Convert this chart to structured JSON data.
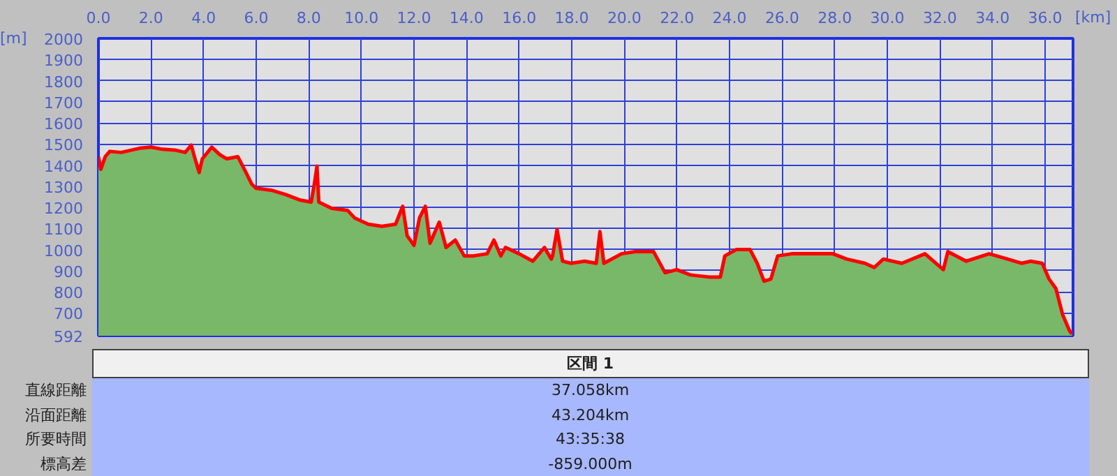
{
  "chart_data": {
    "type": "area",
    "xlabel": "[km]",
    "ylabel": "[m]",
    "xlim": [
      0,
      37.06
    ],
    "ylim": [
      592,
      2000
    ],
    "xticks": [
      {
        "value": 0,
        "label": "0.0"
      },
      {
        "value": 2,
        "label": "2.0"
      },
      {
        "value": 4,
        "label": "4.0"
      },
      {
        "value": 6,
        "label": "6.0"
      },
      {
        "value": 8,
        "label": "8.0"
      },
      {
        "value": 10,
        "label": "10.0"
      },
      {
        "value": 12,
        "label": "12.0"
      },
      {
        "value": 14,
        "label": "14.0"
      },
      {
        "value": 16,
        "label": "16.0"
      },
      {
        "value": 18,
        "label": "18.0"
      },
      {
        "value": 20,
        "label": "20.0"
      },
      {
        "value": 22,
        "label": "22.0"
      },
      {
        "value": 24,
        "label": "24.0"
      },
      {
        "value": 26,
        "label": "26.0"
      },
      {
        "value": 28,
        "label": "28.0"
      },
      {
        "value": 30,
        "label": "30.0"
      },
      {
        "value": 32,
        "label": "32.0"
      },
      {
        "value": 34,
        "label": "34.0"
      },
      {
        "value": 36,
        "label": "36.0"
      }
    ],
    "yticks": [
      592,
      700,
      800,
      900,
      1000,
      1100,
      1200,
      1300,
      1400,
      1500,
      1600,
      1700,
      1800,
      1900,
      2000
    ],
    "grid": true,
    "x": [
      0,
      0.09,
      0.26,
      0.43,
      0.87,
      1.57,
      2.0,
      2.43,
      2.96,
      3.3,
      3.53,
      3.65,
      3.83,
      3.95,
      4.31,
      4.61,
      4.87,
      5.3,
      5.57,
      5.83,
      6.0,
      6.61,
      7.13,
      7.65,
      8.09,
      8.21,
      8.31,
      8.38,
      8.87,
      9.48,
      9.74,
      10.26,
      10.78,
      11.3,
      11.57,
      11.74,
      12.0,
      12.21,
      12.43,
      12.61,
      12.96,
      13.22,
      13.57,
      13.91,
      14.26,
      14.78,
      15.04,
      15.3,
      15.48,
      16.0,
      16.52,
      16.96,
      17.22,
      17.27,
      17.44,
      17.65,
      17.97,
      18.49,
      18.93,
      19.07,
      19.22,
      19.89,
      20.41,
      21.11,
      21.55,
      21.99,
      22.51,
      23.21,
      23.65,
      23.82,
      24.26,
      24.78,
      25.05,
      25.31,
      25.57,
      25.83,
      26.36,
      26.88,
      27.41,
      27.93,
      28.45,
      29.15,
      29.5,
      29.85,
      30.55,
      31.43,
      32.13,
      32.3,
      33.0,
      33.87,
      34.57,
      35.1,
      35.45,
      35.89,
      36.15,
      36.41,
      36.67,
      36.93,
      37.02
    ],
    "series": [
      {
        "color": "#78b868",
        "values": [
          1440,
          1380,
          1440,
          1465,
          1460,
          1480,
          1485,
          1475,
          1470,
          1460,
          1495,
          1440,
          1365,
          1430,
          1485,
          1450,
          1430,
          1440,
          1375,
          1310,
          1290,
          1280,
          1260,
          1235,
          1225,
          1310,
          1395,
          1225,
          1195,
          1185,
          1150,
          1120,
          1110,
          1120,
          1205,
          1065,
          1020,
          1150,
          1205,
          1030,
          1130,
          1010,
          1045,
          970,
          970,
          980,
          1045,
          970,
          1010,
          980,
          945,
          1010,
          955,
          970,
          1095,
          945,
          935,
          945,
          935,
          1085,
          935,
          980,
          990,
          990,
          890,
          905,
          880,
          870,
          870,
          970,
          1000,
          1000,
          935,
          850,
          860,
          970,
          980,
          980,
          980,
          980,
          955,
          935,
          915,
          955,
          935,
          980,
          905,
          990,
          945,
          980,
          955,
          935,
          945,
          935,
          860,
          815,
          690,
          615,
          600
        ]
      },
      {
        "type": "line",
        "color": "#ff0000",
        "values": [
          1440,
          1380,
          1440,
          1465,
          1460,
          1480,
          1485,
          1475,
          1470,
          1460,
          1495,
          1440,
          1365,
          1430,
          1485,
          1450,
          1430,
          1440,
          1375,
          1310,
          1290,
          1280,
          1260,
          1235,
          1225,
          1310,
          1395,
          1225,
          1195,
          1185,
          1150,
          1120,
          1110,
          1120,
          1205,
          1065,
          1020,
          1150,
          1205,
          1030,
          1130,
          1010,
          1045,
          970,
          970,
          980,
          1045,
          970,
          1010,
          980,
          945,
          1010,
          955,
          970,
          1095,
          945,
          935,
          945,
          935,
          1085,
          935,
          980,
          990,
          990,
          890,
          905,
          880,
          870,
          870,
          970,
          1000,
          1000,
          935,
          850,
          860,
          970,
          980,
          980,
          980,
          980,
          955,
          935,
          915,
          955,
          935,
          980,
          905,
          990,
          945,
          980,
          955,
          935,
          945,
          935,
          860,
          815,
          690,
          615,
          600
        ]
      }
    ],
    "annotations": [
      "区間 1",
      "直線距離",
      "37.058km",
      "沿面距離",
      "43.204km",
      "所要時間",
      "43:35:38",
      "標高差",
      "-859.000m"
    ]
  }
}
